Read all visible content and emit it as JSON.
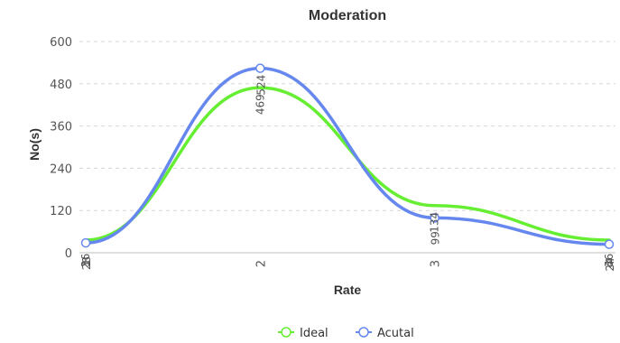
{
  "chart_data": {
    "type": "line",
    "title": "Moderation",
    "xlabel": "Rate",
    "ylabel": "No(s)",
    "categories": [
      "1",
      "2",
      "3",
      "4"
    ],
    "ylim": [
      0,
      600
    ],
    "yticks": [
      "0",
      "120",
      "240",
      "360",
      "480",
      "600"
    ],
    "grid": true,
    "smooth": true,
    "legend_position": "bottom-center",
    "series": [
      {
        "name": "Ideal",
        "values": [
          36,
          469,
          134,
          36
        ],
        "labels": [
          "36",
          "469",
          "134",
          "36"
        ],
        "color": "#66ee33"
      },
      {
        "name": "Acutal",
        "values": [
          28,
          524,
          99,
          24
        ],
        "labels": [
          "28",
          "524",
          "99",
          "24"
        ],
        "color": "#6688ee"
      }
    ]
  }
}
